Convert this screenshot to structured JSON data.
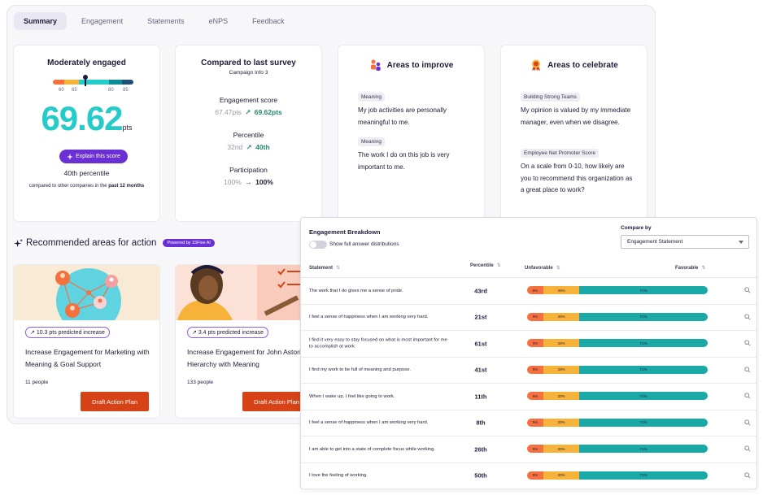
{
  "tabs": [
    "Summary",
    "Engagement",
    "Statements",
    "eNPS",
    "Feedback"
  ],
  "summary": {
    "heading": "Moderately engaged",
    "gauge_ticks": [
      "60",
      "65",
      "80",
      "85"
    ],
    "gauge_colors": [
      "#f4703f",
      "#f7b23a",
      "#25cbc8",
      "#0e8b95",
      "#1f4e79"
    ],
    "score": "69.62",
    "score_unit": "pts",
    "explain_label": "Explain this score",
    "percentile": "40th percentile",
    "compare_prefix": "compared to other companies in the ",
    "compare_period": "past 12 months"
  },
  "compared": {
    "heading": "Compared to last survey",
    "campaign": "Campaign Info 3",
    "metrics": [
      {
        "label": "Engagement score",
        "old": "67.47pts",
        "new": "69.62pts"
      },
      {
        "label": "Percentile",
        "old": "32nd",
        "new": "40th"
      },
      {
        "label": "Participation",
        "old": "100%",
        "new": "100%"
      }
    ]
  },
  "improve": {
    "heading": "Areas to improve",
    "items": [
      {
        "tag": "Meaning",
        "text": "My job activities are personally meaningful to me."
      },
      {
        "tag": "Meaning",
        "text": "The work I do on this job is very important to me."
      }
    ]
  },
  "celebrate": {
    "heading": "Areas to celebrate",
    "items": [
      {
        "tag": "Building Strong Teams",
        "text": "My opinion is valued by my immediate manager, even when we disagree."
      },
      {
        "tag": "Employee Net Promoter Score",
        "text": "On a scale from 0-10, how likely are you to recommend this organization as a great place to work?"
      }
    ]
  },
  "recommended": {
    "title": "Recommended areas for action",
    "badge": "Powered by 15Five AI",
    "cards": [
      {
        "pred": "10.3 pts predicted increase",
        "name": "Increase Engagement for Marketing with Meaning & Goal Support",
        "people": "11 people",
        "action": "Draft Action Plan"
      },
      {
        "pred": "3.4 pts predicted increase",
        "name": "Increase Engagement for John Astorino's Hierarchy with Meaning",
        "people": "133 people",
        "action": "Draft Action Plan"
      }
    ]
  },
  "breakdown": {
    "title": "Engagement  Breakdown",
    "toggle_label": "Show full answer distributions",
    "compare_label": "Compare by",
    "compare_value": "Engagement Statement",
    "headers": {
      "statement": "Statement",
      "percentile": "Percentile",
      "unfavorable": "Unfavorable",
      "favorable": "Favorable"
    },
    "bar_colors": {
      "unfavorable": "#f4703f",
      "neutral": "#f7b23a",
      "favorable": "#1aa9a6"
    },
    "rows": [
      {
        "statement": "The work that I do gives me a sense of pride.",
        "percentile": "43rd",
        "unfav": "9%",
        "neutral": "20%",
        "fav": "71%"
      },
      {
        "statement": "I feel a sense of happiness when I am working very hard.",
        "percentile": "21st",
        "unfav": "9%",
        "neutral": "20%",
        "fav": "71%"
      },
      {
        "statement": "I find it very easy to stay focused on what is most important for me to accomplish at work.",
        "percentile": "61st",
        "unfav": "9%",
        "neutral": "20%",
        "fav": "71%"
      },
      {
        "statement": "I find my work to be full of meaning and purpose.",
        "percentile": "41st",
        "unfav": "9%",
        "neutral": "20%",
        "fav": "71%"
      },
      {
        "statement": "When I wake up, I feel like going to work.",
        "percentile": "11th",
        "unfav": "9%",
        "neutral": "20%",
        "fav": "71%"
      },
      {
        "statement": "I feel a sense of happiness when I am working very hard.",
        "percentile": "8th",
        "unfav": "9%",
        "neutral": "20%",
        "fav": "71%"
      },
      {
        "statement": "I am able to get into a state of complete focus while working.",
        "percentile": "26th",
        "unfav": "9%",
        "neutral": "20%",
        "fav": "71%"
      },
      {
        "statement": "I love the feeling of working.",
        "percentile": "50th",
        "unfav": "9%",
        "neutral": "20%",
        "fav": "71%"
      }
    ]
  }
}
